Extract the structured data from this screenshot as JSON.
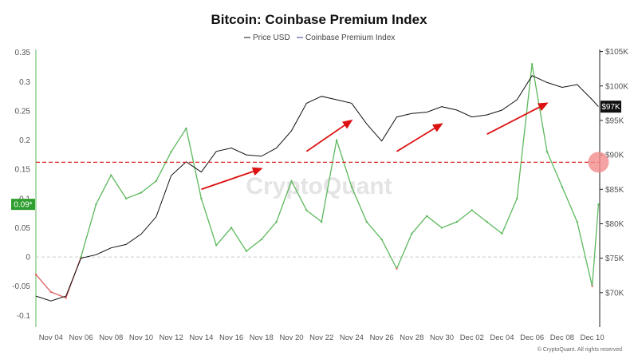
{
  "chart_data": {
    "type": "line",
    "title": "Bitcoin: Coinbase Premium Index",
    "legend": {
      "placement": "top-center",
      "entries": [
        "Price USD",
        "Coinbase Premium Index"
      ]
    },
    "watermark": "CryptoQuant",
    "footer": "© CryptoQuant. All rights reserved",
    "x_ticks": [
      "Nov 04",
      "Nov 06",
      "Nov 08",
      "Nov 10",
      "Nov 12",
      "Nov 14",
      "Nov 16",
      "Nov 18",
      "Nov 20",
      "Nov 22",
      "Nov 24",
      "Nov 26",
      "Nov 28",
      "Nov 30",
      "Dec 02",
      "Dec 04",
      "Dec 06",
      "Dec 08",
      "Dec 10"
    ],
    "left_axis": {
      "ticks": [
        "0.35",
        "0.3",
        "0.25",
        "0.2",
        "0.15",
        "0.1",
        "0.05",
        "0",
        "-0.05",
        "-0.1"
      ],
      "range": [
        -0.12,
        0.355
      ]
    },
    "right_axis": {
      "ticks": [
        "$105K",
        "$100K",
        "$95K",
        "$90K",
        "$85K",
        "$80K",
        "$75K",
        "$70K"
      ],
      "range": [
        65000,
        105300
      ]
    },
    "threshold_line": 0.162,
    "current_premium_badge": "0.09*",
    "current_price_badge": "$97K",
    "colors": {
      "price": "#111111",
      "premium_positive": "#5cb85c",
      "premium_negative": "#e06060",
      "threshold": "#dd2222",
      "arrow": "#dd1111",
      "badge_green": "#2e9e2e",
      "badge_black": "#111111",
      "marker": "#f28b8b"
    },
    "series": [
      {
        "name": "Price USD",
        "axis": "right",
        "x": [
          "Nov 03",
          "Nov 04",
          "Nov 05",
          "Nov 06",
          "Nov 07",
          "Nov 08",
          "Nov 09",
          "Nov 10",
          "Nov 11",
          "Nov 12",
          "Nov 13",
          "Nov 14",
          "Nov 15",
          "Nov 16",
          "Nov 17",
          "Nov 18",
          "Nov 19",
          "Nov 20",
          "Nov 21",
          "Nov 22",
          "Nov 23",
          "Nov 24",
          "Nov 25",
          "Nov 26",
          "Nov 27",
          "Nov 28",
          "Nov 29",
          "Nov 30",
          "Dec 01",
          "Dec 02",
          "Dec 03",
          "Dec 04",
          "Dec 05",
          "Dec 06",
          "Dec 07",
          "Dec 08",
          "Dec 09",
          "Dec 10",
          "Dec 10"
        ],
        "values": [
          69500,
          68800,
          69500,
          75000,
          75500,
          76500,
          77000,
          78500,
          81000,
          87000,
          89000,
          87500,
          90500,
          91000,
          90000,
          89800,
          91000,
          93500,
          97500,
          98500,
          98000,
          97500,
          94500,
          92000,
          95500,
          96000,
          96200,
          97000,
          96500,
          95500,
          95800,
          96500,
          98000,
          101500,
          100500,
          99800,
          100200,
          98000,
          97000
        ]
      },
      {
        "name": "Coinbase Premium Index",
        "axis": "left",
        "x": [
          "Nov 03",
          "Nov 04",
          "Nov 05",
          "Nov 06",
          "Nov 07",
          "Nov 08",
          "Nov 09",
          "Nov 10",
          "Nov 11",
          "Nov 12",
          "Nov 13",
          "Nov 14",
          "Nov 15",
          "Nov 16",
          "Nov 17",
          "Nov 18",
          "Nov 19",
          "Nov 20",
          "Nov 21",
          "Nov 22",
          "Nov 23",
          "Nov 24",
          "Nov 25",
          "Nov 26",
          "Nov 27",
          "Nov 28",
          "Nov 29",
          "Nov 30",
          "Dec 01",
          "Dec 02",
          "Dec 03",
          "Dec 04",
          "Dec 05",
          "Dec 06",
          "Dec 07",
          "Dec 08",
          "Dec 09",
          "Dec 10",
          "Dec 10"
        ],
        "values": [
          -0.03,
          -0.06,
          -0.07,
          0.0,
          0.09,
          0.14,
          0.1,
          0.11,
          0.13,
          0.18,
          0.22,
          0.1,
          0.02,
          0.05,
          0.01,
          0.03,
          0.06,
          0.13,
          0.08,
          0.06,
          0.2,
          0.12,
          0.06,
          0.03,
          -0.02,
          0.04,
          0.07,
          0.05,
          0.06,
          0.08,
          0.06,
          0.04,
          0.1,
          0.33,
          0.18,
          0.12,
          0.06,
          -0.05,
          0.09
        ]
      }
    ],
    "arrows": [
      {
        "from": [
          "Nov 14",
          85000
        ],
        "to": [
          "Nov 18",
          88000
        ]
      },
      {
        "from": [
          "Nov 21",
          90500
        ],
        "to": [
          "Nov 24",
          95000
        ]
      },
      {
        "from": [
          "Nov 27",
          90500
        ],
        "to": [
          "Nov 30",
          94500
        ]
      },
      {
        "from": [
          "Dec 03",
          93000
        ],
        "to": [
          "Dec 07",
          97500
        ]
      }
    ]
  }
}
